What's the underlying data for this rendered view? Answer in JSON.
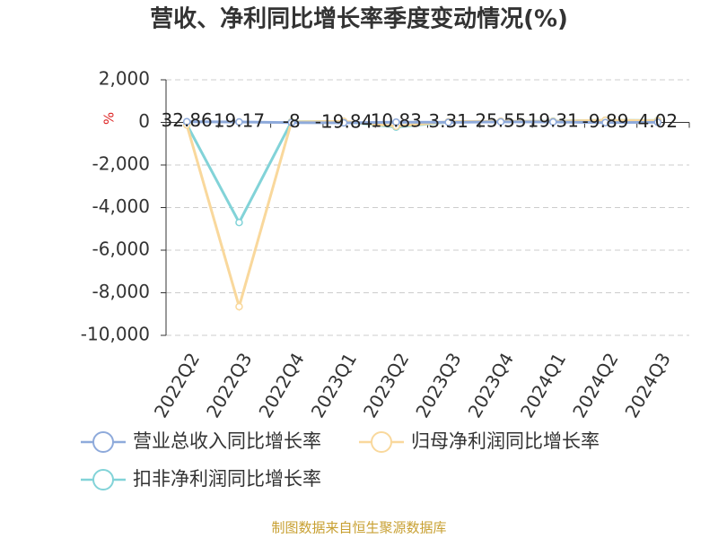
{
  "chart_data": {
    "type": "line",
    "title": "营收、净利同比增长率季度变动情况(%)",
    "y_label": "%",
    "source": "制图数据来自恒生聚源数据库",
    "categories": [
      "2022Q2",
      "2022Q3",
      "2022Q4",
      "2023Q1",
      "2023Q2",
      "2023Q3",
      "2023Q4",
      "2024Q1",
      "2024Q2",
      "2024Q3"
    ],
    "series": [
      {
        "name": "营业总收入同比增长率",
        "color": "#8eaadb",
        "values": [
          32.86,
          19.17,
          -8,
          -19.84,
          10.83,
          3.31,
          25.55,
          19.31,
          -9.89,
          4.02
        ],
        "show_labels": true
      },
      {
        "name": "归母净利润同比增长率",
        "color": "#f9d89c",
        "values": [
          -120,
          -8650,
          20,
          50,
          -180,
          30,
          60,
          50,
          100,
          80
        ]
      },
      {
        "name": "扣非净利润同比增长率",
        "color": "#82d3d8",
        "values": [
          -100,
          -4700,
          30,
          40,
          -220,
          20,
          50,
          60,
          100,
          90
        ]
      }
    ],
    "ylim": [
      -10000,
      2000
    ],
    "yticks": [
      {
        "value": -10000,
        "label": "-10,000"
      },
      {
        "value": -8000,
        "label": "-8,000"
      },
      {
        "value": -6000,
        "label": "-6,000"
      },
      {
        "value": -4000,
        "label": "-4,000"
      },
      {
        "value": -2000,
        "label": "-2,000"
      },
      0,
      {
        "value": 2000,
        "label": "2,000"
      }
    ],
    "grid": true
  }
}
